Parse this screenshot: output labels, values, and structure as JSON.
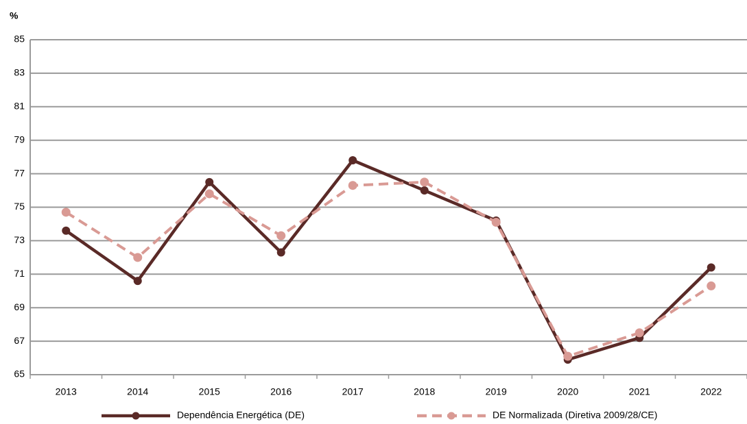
{
  "chart_data": {
    "type": "line",
    "y_label": "%",
    "categories": [
      "2013",
      "2014",
      "2015",
      "2016",
      "2017",
      "2018",
      "2019",
      "2020",
      "2021",
      "2022"
    ],
    "series": [
      {
        "name": "Dependência Energética (DE)",
        "color": "#5a2a27",
        "dash": false,
        "values": [
          73.6,
          70.6,
          76.5,
          72.3,
          77.8,
          76.0,
          74.2,
          65.9,
          67.2,
          71.4
        ]
      },
      {
        "name": "DE Normalizada (Diretiva 2009/28/CE)",
        "color": "#d99a94",
        "dash": true,
        "values": [
          74.7,
          72.0,
          75.8,
          73.3,
          76.3,
          76.5,
          74.1,
          66.1,
          67.5,
          70.3
        ]
      }
    ],
    "ylim": [
      65,
      85
    ],
    "yticks": [
      65,
      67,
      69,
      71,
      73,
      75,
      77,
      79,
      81,
      83,
      85
    ],
    "grid": true
  }
}
